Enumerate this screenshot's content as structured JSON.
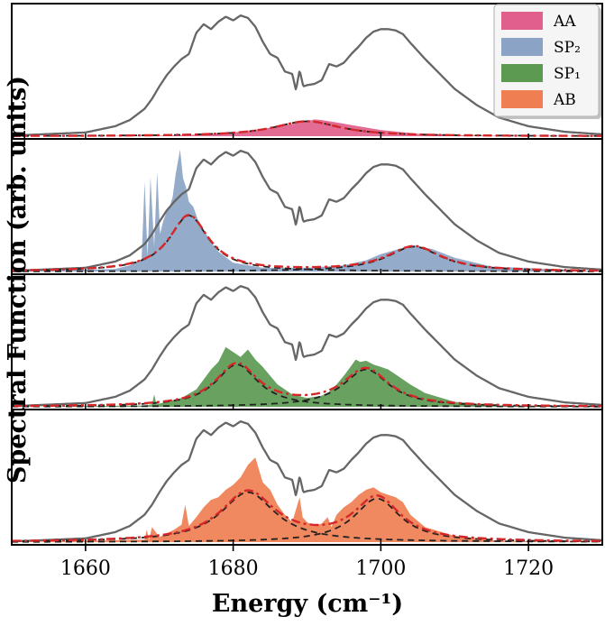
{
  "chart_data": {
    "type": "area",
    "xlabel": "Energy (cm⁻¹)",
    "ylabel": "Spectral Function (arb. units)",
    "xlim": [
      1650,
      1730
    ],
    "xticks": [
      "1660",
      "1680",
      "1700",
      "1720"
    ],
    "grid": false,
    "legend_position": "top-right",
    "legend": [
      {
        "label": "AA",
        "color": "#e15f8c"
      },
      {
        "label": "SP₂",
        "color": "#8ba4c6"
      },
      {
        "label": "SP₁",
        "color": "#5c9a52"
      },
      {
        "label": "AB",
        "color": "#ef7e52"
      }
    ],
    "total_spectrum": {
      "color": "#666666",
      "x": [
        1650,
        1660,
        1664,
        1666,
        1668,
        1669,
        1670,
        1671,
        1672,
        1673,
        1674,
        1675,
        1676,
        1677,
        1678,
        1679,
        1680,
        1681,
        1682,
        1683,
        1684,
        1685,
        1686,
        1687,
        1688,
        1688.5,
        1689,
        1689.5,
        1690,
        1691,
        1692,
        1693,
        1694,
        1695,
        1696,
        1697,
        1698,
        1699,
        1700,
        1701,
        1702,
        1703,
        1704,
        1706,
        1708,
        1710,
        1713,
        1716,
        1720,
        1725,
        1730
      ],
      "y": [
        0.005,
        0.03,
        0.08,
        0.13,
        0.22,
        0.3,
        0.4,
        0.49,
        0.56,
        0.62,
        0.66,
        0.83,
        0.9,
        0.86,
        0.92,
        0.96,
        0.93,
        0.97,
        0.95,
        0.88,
        0.76,
        0.66,
        0.63,
        0.52,
        0.5,
        0.37,
        0.53,
        0.4,
        0.41,
        0.42,
        0.45,
        0.58,
        0.56,
        0.59,
        0.66,
        0.72,
        0.79,
        0.84,
        0.86,
        0.86,
        0.85,
        0.82,
        0.75,
        0.62,
        0.5,
        0.38,
        0.25,
        0.15,
        0.08,
        0.035,
        0.015
      ]
    },
    "panels": [
      {
        "name": "AA",
        "color": "#e15f8c",
        "x": [
          1650,
          1670,
          1675,
          1680,
          1684,
          1687,
          1689,
          1690,
          1691,
          1692,
          1694,
          1697,
          1700,
          1705,
          1712,
          1730
        ],
        "y": [
          0,
          0.004,
          0.012,
          0.03,
          0.06,
          0.085,
          0.11,
          0.12,
          0.135,
          0.13,
          0.11,
          0.08,
          0.05,
          0.02,
          0.006,
          0
        ],
        "fits": [
          {
            "kind": "lorentzian",
            "center": 1690,
            "width": 5.5,
            "amplitude": 0.12
          }
        ]
      },
      {
        "name": "SP₂",
        "color": "#8ba4c6",
        "x": [
          1650,
          1664,
          1666,
          1667.6,
          1668.0,
          1668.4,
          1668.8,
          1669.3,
          1669.7,
          1670.1,
          1670.5,
          1671,
          1671.4,
          1671.8,
          1672.2,
          1672.8,
          1673.2,
          1673.6,
          1674,
          1674.6,
          1675.2,
          1675.8,
          1676.6,
          1677.2,
          1678,
          1680,
          1684,
          1690,
          1695,
          1698,
          1700,
          1703,
          1704.5,
          1707,
          1710,
          1715,
          1730
        ],
        "y": [
          0.003,
          0.02,
          0.05,
          0.1,
          0.72,
          0.12,
          0.76,
          0.2,
          0.8,
          0.3,
          0.4,
          0.48,
          0.52,
          0.6,
          0.78,
          0.98,
          0.75,
          0.68,
          0.56,
          0.52,
          0.42,
          0.34,
          0.28,
          0.22,
          0.16,
          0.07,
          0.03,
          0.03,
          0.05,
          0.09,
          0.14,
          0.19,
          0.21,
          0.18,
          0.11,
          0.04,
          0.003
        ],
        "fits": [
          {
            "kind": "lorentzian",
            "center": 1674,
            "width": 3.2,
            "amplitude": 0.45
          },
          {
            "kind": "lorentzian",
            "center": 1704.5,
            "width": 4.5,
            "amplitude": 0.2
          }
        ]
      },
      {
        "name": "SP₁",
        "color": "#5c9a52",
        "x": [
          1650,
          1668,
          1669,
          1669.3,
          1669.6,
          1671,
          1673,
          1675,
          1677,
          1678,
          1679,
          1680,
          1681,
          1682,
          1683,
          1684,
          1685,
          1686,
          1688,
          1690,
          1692,
          1693,
          1694,
          1695,
          1696,
          1696.6,
          1697.2,
          1698,
          1699,
          1700,
          1701,
          1702,
          1704,
          1706,
          1710,
          1716,
          1730
        ],
        "y": [
          0,
          0.01,
          0.02,
          0.1,
          0.02,
          0.04,
          0.07,
          0.14,
          0.3,
          0.36,
          0.48,
          0.44,
          0.4,
          0.46,
          0.38,
          0.32,
          0.25,
          0.18,
          0.1,
          0.07,
          0.09,
          0.12,
          0.18,
          0.25,
          0.33,
          0.38,
          0.36,
          0.37,
          0.34,
          0.32,
          0.3,
          0.26,
          0.18,
          0.11,
          0.04,
          0.01,
          0
        ],
        "fits": [
          {
            "kind": "lorentzian",
            "center": 1680.5,
            "width": 3.5,
            "amplitude": 0.34
          },
          {
            "kind": "lorentzian",
            "center": 1698,
            "width": 3.8,
            "amplitude": 0.3
          }
        ]
      },
      {
        "name": "AB",
        "color": "#ef7e52",
        "x": [
          1650,
          1668,
          1668.3,
          1668.6,
          1669,
          1670,
          1671,
          1672,
          1673,
          1673.5,
          1674,
          1675,
          1676,
          1677,
          1678,
          1679,
          1680,
          1681,
          1682,
          1683,
          1684,
          1685,
          1686,
          1687,
          1688,
          1688.6,
          1689,
          1689.4,
          1690,
          1691,
          1692,
          1692.8,
          1693.3,
          1694,
          1695,
          1696,
          1697,
          1698,
          1699,
          1700,
          1701,
          1702,
          1703,
          1704,
          1706,
          1710,
          1716,
          1730
        ],
        "y": [
          0,
          0.02,
          0.1,
          0.02,
          0.12,
          0.04,
          0.07,
          0.1,
          0.14,
          0.3,
          0.13,
          0.2,
          0.28,
          0.34,
          0.36,
          0.42,
          0.46,
          0.52,
          0.62,
          0.68,
          0.48,
          0.42,
          0.3,
          0.22,
          0.16,
          0.28,
          0.36,
          0.2,
          0.16,
          0.13,
          0.15,
          0.2,
          0.12,
          0.22,
          0.28,
          0.32,
          0.38,
          0.42,
          0.44,
          0.4,
          0.38,
          0.36,
          0.32,
          0.22,
          0.12,
          0.05,
          0.01,
          0
        ],
        "fits": [
          {
            "kind": "lorentzian",
            "center": 1682,
            "width": 4.5,
            "amplitude": 0.4
          },
          {
            "kind": "lorentzian",
            "center": 1699.5,
            "width": 3.8,
            "amplitude": 0.35
          }
        ]
      }
    ]
  }
}
